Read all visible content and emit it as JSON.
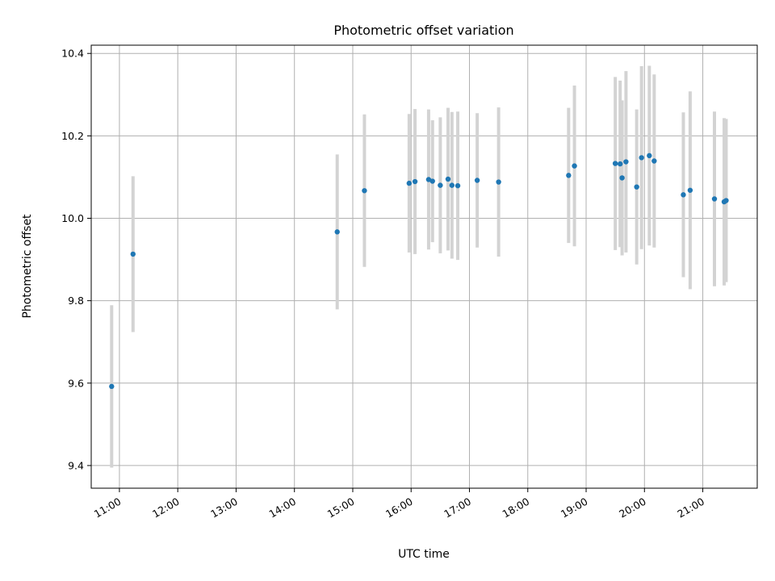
{
  "chart_data": {
    "type": "scatter",
    "title": "Photometric offset variation",
    "xlabel": "UTC time",
    "ylabel": "Photometric offset",
    "xlim": [
      "10:31",
      "21:56"
    ],
    "ylim": [
      9.345,
      10.42
    ],
    "x_ticks": [
      "11:00",
      "12:00",
      "13:00",
      "14:00",
      "15:00",
      "16:00",
      "17:00",
      "18:00",
      "19:00",
      "20:00",
      "21:00"
    ],
    "y_ticks": [
      9.4,
      9.6,
      9.8,
      10.0,
      10.2,
      10.4
    ],
    "grid": true,
    "legend": null,
    "colors": {
      "point": "#1f77b4",
      "errorbar": "#d3d3d3",
      "grid": "#b0b0b0"
    },
    "series": [
      {
        "points": [
          {
            "t": "10:52",
            "y": 9.592,
            "yerr": 0.197
          },
          {
            "t": "11:14",
            "y": 9.913,
            "yerr": 0.189
          },
          {
            "t": "14:44",
            "y": 9.967,
            "yerr": 0.188
          },
          {
            "t": "15:12",
            "y": 10.067,
            "yerr": 0.185
          },
          {
            "t": "15:58",
            "y": 10.085,
            "yerr": 0.168
          },
          {
            "t": "16:04",
            "y": 10.089,
            "yerr": 0.176
          },
          {
            "t": "16:18",
            "y": 10.094,
            "yerr": 0.17
          },
          {
            "t": "16:22",
            "y": 10.09,
            "yerr": 0.148
          },
          {
            "t": "16:30",
            "y": 10.08,
            "yerr": 0.165
          },
          {
            "t": "16:38",
            "y": 10.095,
            "yerr": 0.173
          },
          {
            "t": "16:42",
            "y": 10.08,
            "yerr": 0.178
          },
          {
            "t": "16:48",
            "y": 10.079,
            "yerr": 0.18
          },
          {
            "t": "17:08",
            "y": 10.092,
            "yerr": 0.163
          },
          {
            "t": "17:30",
            "y": 10.088,
            "yerr": 0.181
          },
          {
            "t": "18:42",
            "y": 10.104,
            "yerr": 0.164
          },
          {
            "t": "18:48",
            "y": 10.127,
            "yerr": 0.195
          },
          {
            "t": "19:30",
            "y": 10.133,
            "yerr": 0.21
          },
          {
            "t": "19:35",
            "y": 10.132,
            "yerr": 0.202
          },
          {
            "t": "19:37",
            "y": 10.098,
            "yerr": 0.188
          },
          {
            "t": "19:41",
            "y": 10.137,
            "yerr": 0.22
          },
          {
            "t": "19:52",
            "y": 10.076,
            "yerr": 0.188
          },
          {
            "t": "19:57",
            "y": 10.147,
            "yerr": 0.222
          },
          {
            "t": "20:05",
            "y": 10.152,
            "yerr": 0.218
          },
          {
            "t": "20:10",
            "y": 10.139,
            "yerr": 0.21
          },
          {
            "t": "20:40",
            "y": 10.057,
            "yerr": 0.2
          },
          {
            "t": "20:47",
            "y": 10.068,
            "yerr": 0.24
          },
          {
            "t": "21:12",
            "y": 10.047,
            "yerr": 0.212
          },
          {
            "t": "21:22",
            "y": 10.04,
            "yerr": 0.203
          },
          {
            "t": "21:24",
            "y": 10.043,
            "yerr": 0.198
          }
        ]
      }
    ]
  }
}
